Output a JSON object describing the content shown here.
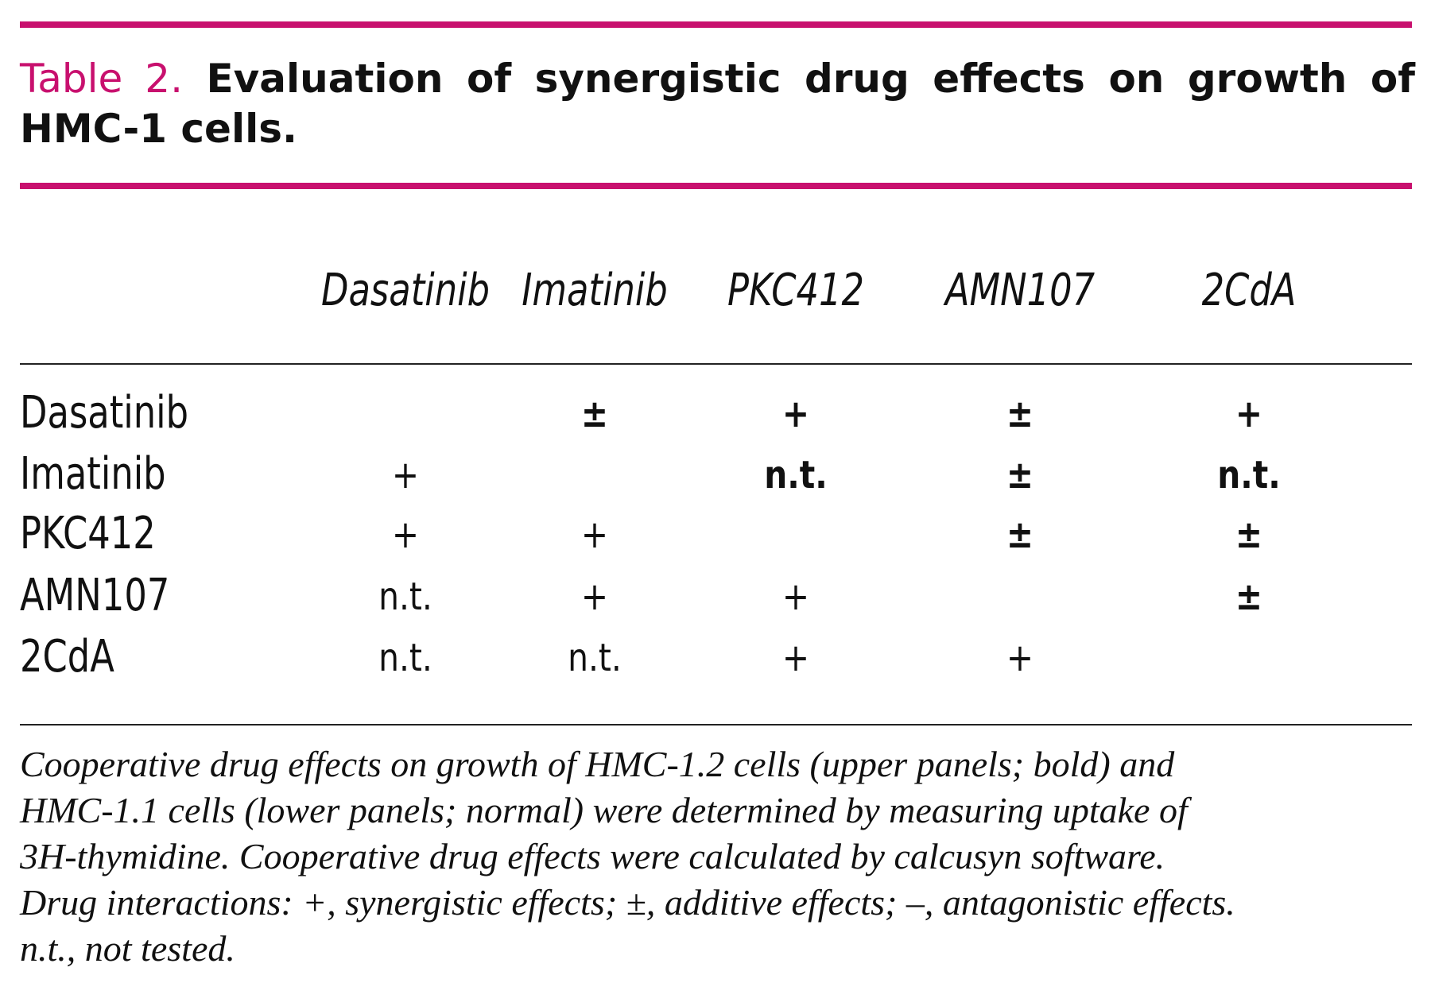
{
  "table": {
    "title": {
      "label": "Table 2.",
      "text": "Evaluation of synergistic drug effects on growth of HMC-1 cells."
    },
    "columns": [
      "Dasatinib",
      "Imatinib",
      "PKC412",
      "AMN107",
      "2CdA"
    ],
    "rows": [
      {
        "label": "Dasatinib",
        "cells": [
          null,
          "±",
          "+",
          "±",
          "+"
        ]
      },
      {
        "label": "Imatinib",
        "cells": [
          "+",
          null,
          "n.t.",
          "±",
          "n.t."
        ]
      },
      {
        "label": "PKC412",
        "cells": [
          "+",
          "+",
          null,
          "±",
          "±"
        ]
      },
      {
        "label": "AMN107",
        "cells": [
          "n.t.",
          "+",
          "+",
          null,
          "±"
        ]
      },
      {
        "label": "2CdA",
        "cells": [
          "n.t.",
          "n.t.",
          "+",
          "+",
          null
        ]
      }
    ],
    "footnote": [
      "Cooperative drug effects on growth of HMC-1.2 cells (upper panels;  bold) and",
      "HMC-1.1 cells (lower panels; normal) were determined by measuring uptake of",
      "3H-thymidine. Cooperative drug effects were  calculated by calcusyn software.",
      "Drug interactions: +, synergistic  effects; ±, additive effects; –, antagonistic effects.",
      "n.t., not tested."
    ]
  }
}
